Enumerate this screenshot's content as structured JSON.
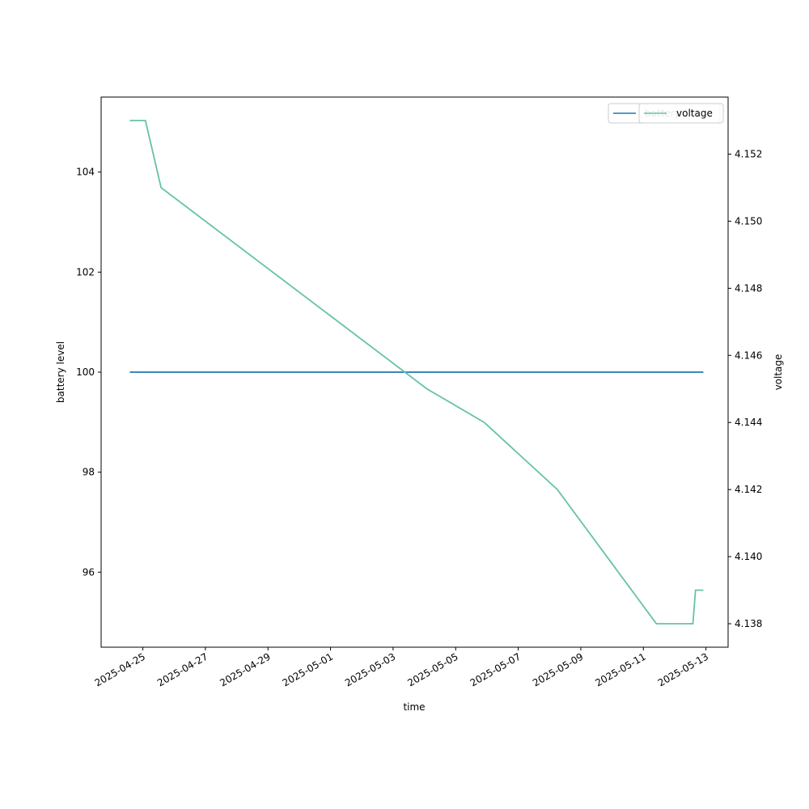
{
  "chart_data": {
    "type": "line",
    "xlabel": "time",
    "ylabel_left": "battery level",
    "ylabel_right": "voltage",
    "x_ticks": [
      "2025-04-25",
      "2025-04-27",
      "2025-04-29",
      "2025-05-01",
      "2025-05-03",
      "2025-05-05",
      "2025-05-07",
      "2025-05-09",
      "2025-05-11",
      "2025-05-13"
    ],
    "xlim": [
      "2025-04-23T16:00",
      "2025-05-13T17:00"
    ],
    "ylim_left": [
      94.5,
      105.5
    ],
    "ylim_right": [
      4.1373,
      4.1537
    ],
    "y_ticks_left": [
      96,
      98,
      100,
      102,
      104
    ],
    "y_ticks_right": [
      "4.138",
      "4.140",
      "4.142",
      "4.144",
      "4.146",
      "4.148",
      "4.150",
      "4.152"
    ],
    "grid": false,
    "legend": {
      "placement": "top-right",
      "overlapping": true
    },
    "series": [
      {
        "name": "battery",
        "axis": "left",
        "color": "#1f77b4",
        "x": [
          "2025-04-24T14:00",
          "2025-05-12T22:00"
        ],
        "y": [
          100,
          100
        ]
      },
      {
        "name": "voltage",
        "axis": "right",
        "color": "#66c2a5",
        "x": [
          "2025-04-24T14:00",
          "2025-04-25T02:00",
          "2025-04-25T14:00",
          "2025-05-04T02:00",
          "2025-05-05T22:00",
          "2025-05-08T06:00",
          "2025-05-11T10:00",
          "2025-05-12T14:00",
          "2025-05-12T16:00",
          "2025-05-12T22:00"
        ],
        "y": [
          4.153,
          4.153,
          4.151,
          4.145,
          4.144,
          4.142,
          4.138,
          4.138,
          4.139,
          4.139
        ]
      }
    ]
  }
}
